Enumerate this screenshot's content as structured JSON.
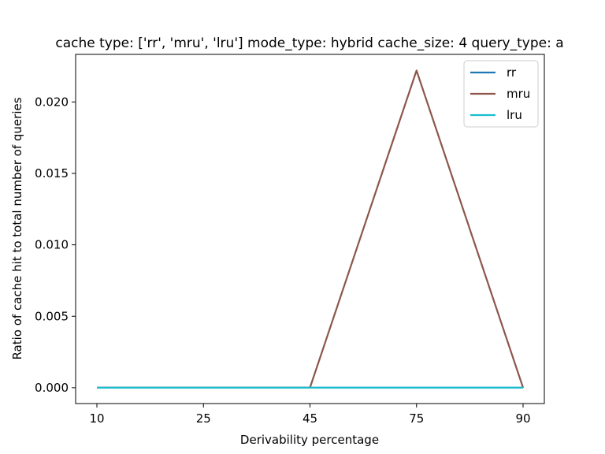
{
  "chart_data": {
    "type": "line",
    "title": "cache type: ['rr', 'mru', 'lru'] mode_type: hybrid cache_size: 4 query_type: a",
    "xlabel": "Derivability percentage",
    "ylabel": "Ratio of cache hit to total number of queries",
    "categories": [
      "10",
      "25",
      "45",
      "75",
      "90"
    ],
    "yticks": [
      0.0,
      0.005,
      0.01,
      0.015,
      0.02
    ],
    "ytick_labels": [
      "0.000",
      "0.005",
      "0.010",
      "0.015",
      "0.020"
    ],
    "ylim": [
      -0.00111,
      0.02333
    ],
    "grid": false,
    "legend_position": "top-right",
    "series": [
      {
        "name": "rr",
        "values": [
          0,
          0,
          0,
          0,
          0
        ],
        "color": "#1f77b4"
      },
      {
        "name": "mru",
        "values": [
          0,
          0,
          0,
          0.0222,
          0
        ],
        "color": "#8c564b"
      },
      {
        "name": "lru",
        "values": [
          0,
          0,
          0,
          0,
          0
        ],
        "color": "#17becf"
      }
    ]
  }
}
